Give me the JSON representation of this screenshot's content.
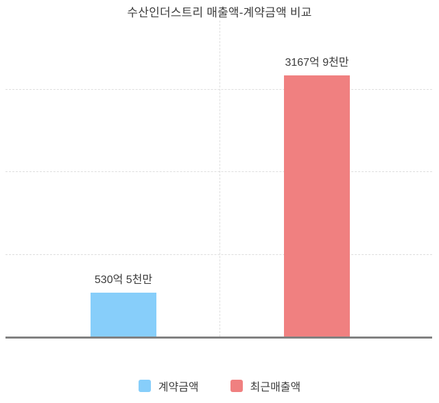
{
  "page": {
    "background": "#ffffff"
  },
  "chart_data": {
    "type": "bar",
    "title": "수산인더스트리 매출액-계약금액 비교",
    "categories": [
      "계약금액",
      "최근매출액"
    ],
    "values": [
      530.5,
      3167.9
    ],
    "unit": "억원",
    "value_labels": [
      "530억 5천만",
      "3167억 9천만"
    ],
    "bar_colors": [
      "#87CEFA",
      "#F08080"
    ],
    "ylim": [
      0,
      3830
    ],
    "ygrid_values": [
      1000,
      2000,
      3000
    ],
    "grid": true,
    "xlabel": "",
    "ylabel": "",
    "legend_position": "bottom",
    "legend": [
      {
        "label": "계약금액",
        "color": "#87CEFA"
      },
      {
        "label": "최근매출액",
        "color": "#F08080"
      }
    ],
    "axis_color": "#808080",
    "gridline_color": "#dddddd",
    "text_color": "#3c3c3c"
  }
}
